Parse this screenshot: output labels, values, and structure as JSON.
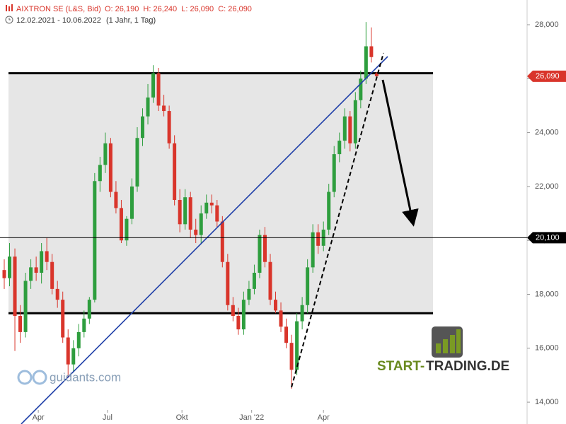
{
  "chart_data": {
    "type": "candlestick",
    "title": "AIXTRON SE (L&S, Bid)",
    "quote_line": "O: 26,190  H: 26,240  L: 26,090  C: 26,090",
    "range": "12.02.2021 - 10.06.2022",
    "period": "(1 Jahr, 1 Tag)",
    "categories": [
      null,
      null,
      null,
      null,
      null,
      null,
      null,
      null,
      null,
      null,
      null,
      null,
      null,
      null,
      null,
      null,
      null,
      null,
      null,
      null,
      null,
      null,
      null,
      null,
      null,
      null,
      null,
      null,
      null,
      null,
      null,
      null,
      null,
      null,
      null,
      null,
      null,
      null,
      null,
      null,
      null,
      null,
      null,
      null,
      null,
      null,
      null,
      null,
      null,
      null,
      null,
      null,
      null,
      null,
      null,
      null,
      null,
      null,
      null,
      null,
      null,
      null,
      null,
      null,
      null,
      null,
      null,
      null,
      null,
      null,
      null
    ],
    "open": [
      18900,
      18600,
      19400,
      17200,
      16600,
      18500,
      19000,
      18800,
      19600,
      19200,
      18200,
      17800,
      16400,
      15400,
      16000,
      16600,
      17100,
      17800,
      22200,
      22800,
      23600,
      21800,
      21200,
      20000,
      20800,
      22000,
      23800,
      24600,
      25300,
      26200,
      25000,
      24800,
      23600,
      21500,
      20600,
      21600,
      20400,
      20200,
      21000,
      21400,
      21300,
      20700,
      19200,
      17600,
      17200,
      16700,
      17800,
      18200,
      18800,
      20200,
      19200,
      17800,
      17400,
      16800,
      16200,
      15200,
      17000,
      17600,
      19000,
      20300,
      19800,
      20400,
      21800,
      23200,
      23700,
      24600,
      23600,
      25200,
      26000,
      27200,
      26190
    ],
    "high": [
      19300,
      19900,
      19700,
      17600,
      18800,
      19300,
      19400,
      19900,
      20100,
      19500,
      18500,
      18100,
      16700,
      16300,
      16900,
      17400,
      17900,
      22500,
      23100,
      24000,
      23800,
      22200,
      21500,
      20900,
      22300,
      24200,
      24900,
      25800,
      26500,
      26400,
      25400,
      25000,
      23900,
      21900,
      21900,
      21800,
      20800,
      21300,
      21700,
      21700,
      21500,
      20900,
      19500,
      17900,
      17500,
      18100,
      18500,
      19100,
      20400,
      20500,
      19500,
      18100,
      17700,
      17100,
      16500,
      17300,
      17900,
      19300,
      20600,
      20600,
      20700,
      22100,
      23500,
      24000,
      24900,
      24800,
      25500,
      26300,
      28100,
      27900,
      26240
    ],
    "low": [
      18200,
      18300,
      15900,
      16200,
      16400,
      18200,
      18500,
      18400,
      18900,
      18000,
      17500,
      16200,
      14900,
      15100,
      15700,
      16400,
      16900,
      17700,
      21800,
      22500,
      21600,
      21000,
      19900,
      19800,
      20600,
      21800,
      23500,
      24300,
      25100,
      24800,
      24600,
      23400,
      21300,
      20300,
      20400,
      20100,
      19900,
      19900,
      20800,
      21000,
      20500,
      19000,
      17400,
      17000,
      16500,
      16500,
      17600,
      18000,
      18600,
      19000,
      17600,
      17300,
      16600,
      16000,
      14500,
      15000,
      16700,
      17300,
      18800,
      19500,
      19600,
      20200,
      21600,
      22900,
      23400,
      23300,
      23400,
      24900,
      25800,
      26600,
      26090
    ],
    "close": [
      18600,
      19400,
      17200,
      16600,
      18500,
      19000,
      18800,
      19600,
      19200,
      18200,
      17800,
      16400,
      15400,
      16000,
      16600,
      17100,
      17800,
      22200,
      22800,
      23600,
      21800,
      21200,
      20000,
      20800,
      22000,
      23800,
      24600,
      25300,
      26200,
      25000,
      24800,
      23600,
      21500,
      20600,
      21600,
      20400,
      20200,
      21000,
      21400,
      21300,
      20700,
      19200,
      17600,
      17200,
      16700,
      17800,
      18200,
      18800,
      20200,
      19200,
      17800,
      17400,
      16800,
      16200,
      15200,
      17000,
      17600,
      19000,
      20300,
      19800,
      20400,
      21800,
      23200,
      23700,
      24600,
      23600,
      25200,
      26000,
      27200,
      26800,
      26090
    ],
    "up_color": "#2e9e3e",
    "down_color": "#d9352b",
    "ylim": [
      13190,
      28917
    ],
    "yticks": [
      {
        "value": 14000,
        "label": "14,000"
      },
      {
        "value": 16000,
        "label": "16,000"
      },
      {
        "value": 18000,
        "label": "18,000"
      },
      {
        "value": 20000,
        "label": "20,000"
      },
      {
        "value": 22000,
        "label": "22,000"
      },
      {
        "value": 24000,
        "label": "24,000"
      },
      {
        "value": 26000,
        "label": "26,000"
      },
      {
        "value": 28000,
        "label": "28,000"
      }
    ],
    "xticks": [
      {
        "value": 6.4,
        "label": "Apr"
      },
      {
        "value": 19.4,
        "label": "Jul"
      },
      {
        "value": 33.4,
        "label": "Okt"
      },
      {
        "value": 46.5,
        "label": "Jan '22"
      },
      {
        "value": 60,
        "label": "Apr"
      }
    ],
    "zone": [
      17300,
      26200
    ],
    "level": {
      "value": 20100,
      "label": "20,100"
    },
    "last_price": {
      "value": 26090,
      "label": "26,090"
    },
    "watermark": "guidants.com",
    "brand": [
      "START-",
      "TRADING.DE"
    ]
  }
}
